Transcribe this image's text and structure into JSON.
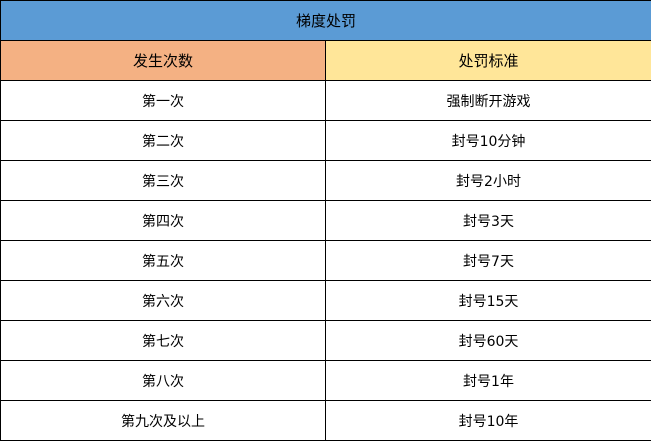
{
  "title": "梯度处罚",
  "headers": [
    "发生次数",
    "处罚标准"
  ],
  "colors": {
    "title_bg": "#5b9bd5",
    "header_left_bg": "#f4b183",
    "header_right_bg": "#ffe699"
  },
  "rows": [
    [
      "第一次",
      "强制断开游戏"
    ],
    [
      "第二次",
      "封号10分钟"
    ],
    [
      "第三次",
      "封号2小时"
    ],
    [
      "第四次",
      "封号3天"
    ],
    [
      "第五次",
      "封号7天"
    ],
    [
      "第六次",
      "封号15天"
    ],
    [
      "第七次",
      "封号60天"
    ],
    [
      "第八次",
      "封号1年"
    ],
    [
      "第九次及以上",
      "封号10年"
    ]
  ]
}
